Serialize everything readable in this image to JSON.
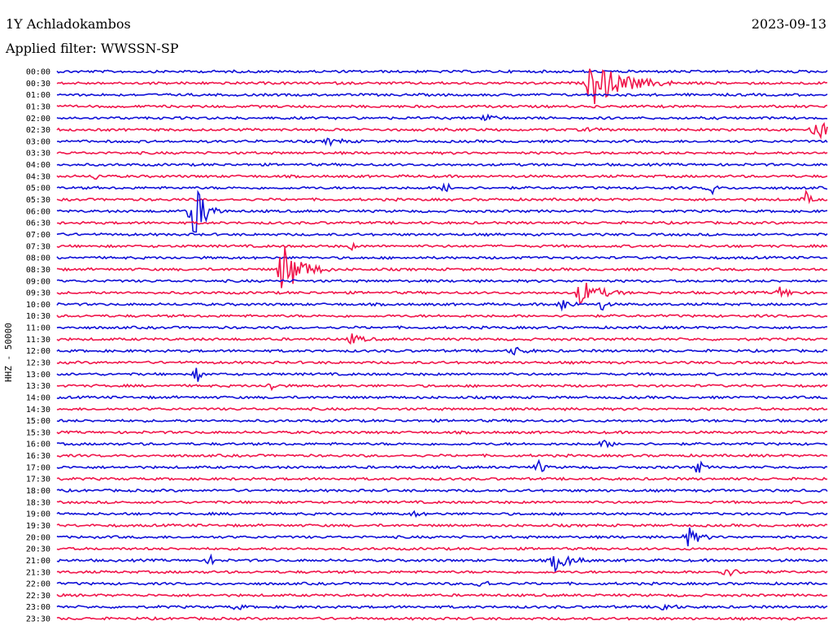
{
  "header": {
    "station": "1Y Achladokambos",
    "date": "2023-09-13",
    "filter": "Applied filter: WWSSN-SP",
    "channel_scale": "HHZ - 50000"
  },
  "colors": {
    "trace_a": "#0f0fd7",
    "trace_b": "#f0144a"
  },
  "chart_data": {
    "type": "line",
    "title": "1Y Achladokambos",
    "ylabel": "HHZ - 50000",
    "xlabel": "",
    "row_labels": [
      "00:00",
      "00:30",
      "01:00",
      "01:30",
      "02:00",
      "02:30",
      "03:00",
      "03:30",
      "04:00",
      "04:30",
      "05:00",
      "05:30",
      "06:00",
      "06:30",
      "07:00",
      "07:30",
      "08:00",
      "08:30",
      "09:00",
      "09:30",
      "10:00",
      "10:30",
      "11:00",
      "11:30",
      "12:00",
      "12:30",
      "13:00",
      "13:30",
      "14:00",
      "14:30",
      "15:00",
      "15:30",
      "16:00",
      "16:30",
      "17:00",
      "17:30",
      "18:00",
      "18:30",
      "19:00",
      "19:30",
      "20:00",
      "20:30",
      "21:00",
      "21:30",
      "22:00",
      "22:30",
      "23:00",
      "23:30"
    ],
    "row_minutes": 30,
    "series": [
      {
        "name": "",
        "rows": "even",
        "color": "#0f0fd7"
      },
      {
        "name": "",
        "rows": "odd",
        "color": "#f0144a"
      }
    ],
    "events": [
      {
        "row": 1,
        "minute": 20.8,
        "amp": 28,
        "dur": 3.2
      },
      {
        "row": 4,
        "minute": 16.6,
        "amp": 6,
        "dur": 0.9
      },
      {
        "row": 5,
        "minute": 20.8,
        "amp": 4,
        "dur": 0.5
      },
      {
        "row": 5,
        "minute": 29.5,
        "amp": 12,
        "dur": 1.8
      },
      {
        "row": 6,
        "minute": 10.6,
        "amp": 4,
        "dur": 1.2
      },
      {
        "row": 9,
        "minute": 1.6,
        "amp": 6,
        "dur": 0.2
      },
      {
        "row": 10,
        "minute": 15.2,
        "amp": 10,
        "dur": 0.3
      },
      {
        "row": 10,
        "minute": 25.5,
        "amp": 10,
        "dur": 0.3
      },
      {
        "row": 11,
        "minute": 29.2,
        "amp": 10,
        "dur": 0.4
      },
      {
        "row": 12,
        "minute": 5.3,
        "amp": 40,
        "dur": 1.2
      },
      {
        "row": 15,
        "minute": 11.5,
        "amp": 4,
        "dur": 0.3
      },
      {
        "row": 17,
        "minute": 8.8,
        "amp": 34,
        "dur": 1.8
      },
      {
        "row": 19,
        "minute": 20.4,
        "amp": 16,
        "dur": 1.8
      },
      {
        "row": 19,
        "minute": 28.2,
        "amp": 8,
        "dur": 0.8
      },
      {
        "row": 20,
        "minute": 19.7,
        "amp": 8,
        "dur": 0.8
      },
      {
        "row": 20,
        "minute": 21.3,
        "amp": 10,
        "dur": 0.3
      },
      {
        "row": 23,
        "minute": 11.5,
        "amp": 6,
        "dur": 1.0
      },
      {
        "row": 24,
        "minute": 17.8,
        "amp": 5,
        "dur": 1.0
      },
      {
        "row": 26,
        "minute": 5.5,
        "amp": 10,
        "dur": 0.3
      },
      {
        "row": 27,
        "minute": 8.4,
        "amp": 9,
        "dur": 0.3
      },
      {
        "row": 32,
        "minute": 21.3,
        "amp": 4,
        "dur": 1.0
      },
      {
        "row": 34,
        "minute": 18.8,
        "amp": 9,
        "dur": 0.4
      },
      {
        "row": 34,
        "minute": 25.0,
        "amp": 9,
        "dur": 0.4
      },
      {
        "row": 38,
        "minute": 14.0,
        "amp": 5,
        "dur": 0.4
      },
      {
        "row": 40,
        "minute": 24.6,
        "amp": 12,
        "dur": 1.0
      },
      {
        "row": 42,
        "minute": 6.0,
        "amp": 5,
        "dur": 0.5
      },
      {
        "row": 42,
        "minute": 19.4,
        "amp": 12,
        "dur": 1.5
      },
      {
        "row": 43,
        "minute": 26.0,
        "amp": 6,
        "dur": 1.2
      },
      {
        "row": 44,
        "minute": 16.5,
        "amp": 8,
        "dur": 0.6
      },
      {
        "row": 46,
        "minute": 7.0,
        "amp": 4,
        "dur": 0.5
      },
      {
        "row": 46,
        "minute": 23.6,
        "amp": 6,
        "dur": 0.8
      }
    ]
  }
}
